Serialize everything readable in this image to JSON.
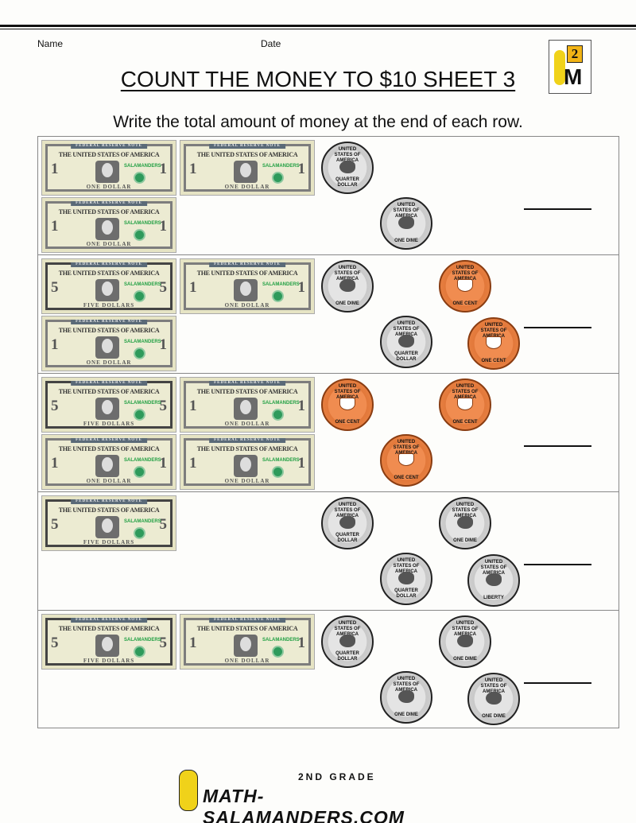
{
  "header": {
    "name_label": "Name",
    "date_label": "Date",
    "logo_number": "2",
    "logo_letter": "M"
  },
  "title": "COUNT THE MONEY TO $10 SHEET 3",
  "instructions": "Write the total amount of money at the end of each row.",
  "bill_text": {
    "federal_reserve_note": "FEDERAL RESERVE NOTE",
    "country": "THE UNITED STATES OF AMERICA",
    "brand": "SALAMANDERS",
    "one": "ONE DOLLAR",
    "five": "FIVE DOLLARS"
  },
  "coin_text": {
    "country": "UNITED STATES OF AMERICA",
    "quarter": "QUARTER DOLLAR",
    "dime": "ONE DIME",
    "penny": "ONE CENT",
    "nickel": "LIBERTY"
  },
  "rows": [
    {
      "bills": [
        "1",
        "1",
        "1"
      ],
      "coins": [
        "quarter",
        "dime"
      ]
    },
    {
      "bills": [
        "5",
        "1",
        "1"
      ],
      "coins": [
        "dime",
        "quarter",
        "penny",
        "penny"
      ]
    },
    {
      "bills": [
        "5",
        "1",
        "1",
        "1"
      ],
      "coins": [
        "penny",
        "penny",
        "penny"
      ]
    },
    {
      "bills": [
        "5"
      ],
      "coins": [
        "quarter",
        "quarter",
        "dime",
        "nickel"
      ]
    },
    {
      "bills": [
        "5",
        "1"
      ],
      "coins": [
        "quarter",
        "dime",
        "dime",
        "dime"
      ]
    }
  ],
  "footer": {
    "grade": "2ND GRADE",
    "site": "MATH-SALAMANDERS.COM"
  }
}
